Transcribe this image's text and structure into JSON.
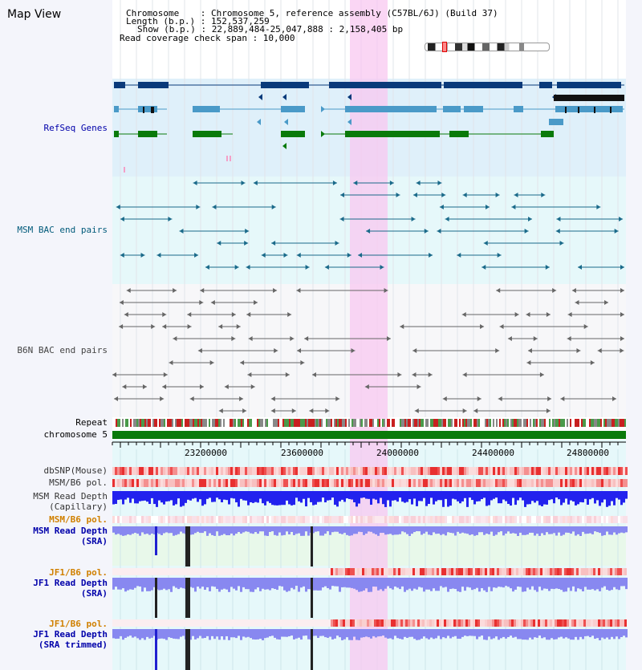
{
  "title": "Map View",
  "header": {
    "line1": "Chromosome    : Chromosome 5, reference assembly (C57BL/6J) (Build 37)",
    "line2": "Length (b.p.) : 152,537,259",
    "line3": "Show (b.p.) : 22,889,484-25,047,888 : 2,158,405 bp",
    "line4": "Read coverage check span : 10,000"
  },
  "tracks": {
    "refseq": "RefSeq Genes",
    "msm_bac": "MSM BAC end pairs",
    "b6n_bac": "B6N BAC end pairs",
    "repeat": "Repeat",
    "chromosome": "chromosome 5",
    "dbsnp": "dbSNP(Mouse)",
    "msm_b6_pol": "MSM/B6 pol.",
    "msm_depth_cap_1": "MSM Read Depth",
    "msm_depth_cap_2": "(Capillary)",
    "msm_b6_pol_2": "MSM/B6 pol.",
    "msm_depth_sra_1": "MSM Read Depth",
    "msm_depth_sra_2": "(SRA)",
    "jf1_b6_pol": "JF1/B6 pol.",
    "jf1_depth_sra_1": "JF1 Read Depth",
    "jf1_depth_sra_2": "(SRA)",
    "jf1_b6_pol_2": "JF1/B6 pol.",
    "jf1_depth_trim_1": "JF1 Read Depth",
    "jf1_depth_trim_2": "(SRA trimmed)"
  },
  "axis": {
    "ticks": [
      "23200000",
      "23600000",
      "24000000",
      "24400000",
      "24800000"
    ]
  },
  "colors": {
    "refseq_dark": "#0a3a7a",
    "refseq_mid": "#4a9ac8",
    "refseq_green": "#0a7a0a",
    "bac_msm": "#1a6a8a",
    "bac_b6n": "#666666",
    "highlight": "#f8c8f0",
    "label_blue": "#0000aa",
    "label_teal": "#005a7a",
    "label_orange": "#d08000",
    "depth_blue": "#2222ee",
    "depth_light": "#8888f0"
  }
}
